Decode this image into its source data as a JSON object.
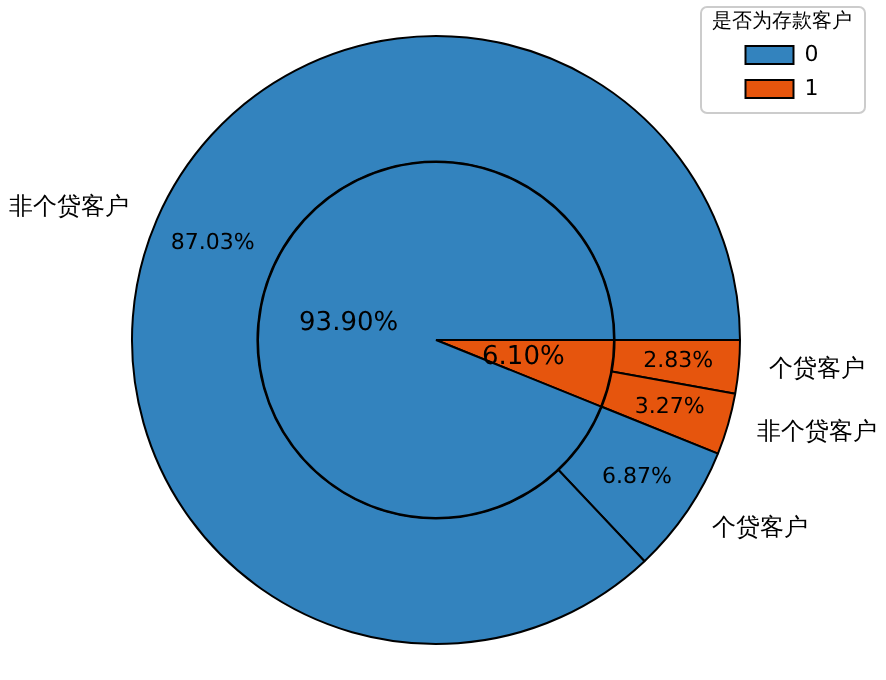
{
  "chart_data": [
    {
      "type": "donut",
      "categories": [
        "非个贷客户",
        "个贷客户",
        "非个贷客户",
        "个贷客户"
      ],
      "values": [
        87.03,
        6.87,
        3.27,
        2.83
      ],
      "colors": [
        "#3383be",
        "#3383be",
        "#e6550d",
        "#e6550d"
      ],
      "value_labels": [
        "87.03%",
        "6.87%",
        "3.27%",
        "2.83%"
      ]
    },
    {
      "type": "pie",
      "categories": [
        "0",
        "1"
      ],
      "values": [
        93.9,
        6.1
      ],
      "colors": [
        "#3383be",
        "#e6550d"
      ],
      "value_labels": [
        "93.90%",
        "6.10%"
      ],
      "legend": "top right",
      "legend_title": "是否为存款客户"
    }
  ]
}
